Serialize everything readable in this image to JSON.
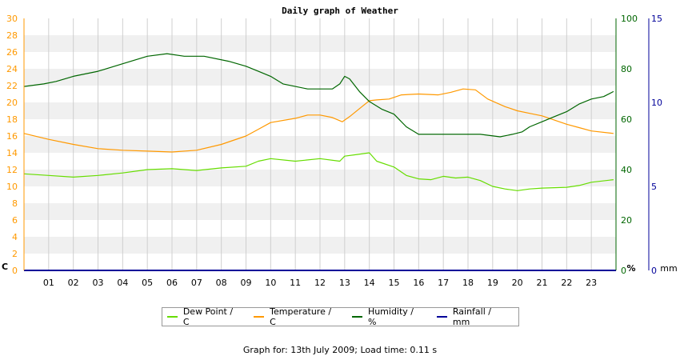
{
  "chart_data": {
    "type": "line",
    "title": "Daily graph of Weather",
    "x": {
      "ticks": [
        "01",
        "02",
        "03",
        "04",
        "05",
        "06",
        "07",
        "08",
        "09",
        "10",
        "11",
        "12",
        "13",
        "14",
        "15",
        "16",
        "17",
        "18",
        "19",
        "20",
        "21",
        "22",
        "23"
      ],
      "range": [
        0,
        24
      ]
    },
    "axes": {
      "left": {
        "unit_label": "C",
        "range": [
          0,
          30
        ],
        "ticks": [
          0,
          2,
          4,
          6,
          8,
          10,
          12,
          14,
          16,
          18,
          20,
          22,
          24,
          26,
          28,
          30
        ],
        "color": "#ff9900"
      },
      "right1": {
        "unit_label": "%",
        "range": [
          0,
          100
        ],
        "ticks": [
          0,
          20,
          40,
          60,
          80,
          100
        ],
        "color": "#006600"
      },
      "right2": {
        "unit_label": "mm",
        "range": [
          0,
          15
        ],
        "ticks": [
          0,
          5,
          10,
          15
        ],
        "color": "#000099"
      }
    },
    "series": [
      {
        "name": "Dew Point / C",
        "axis": "left",
        "color": "#66dd00",
        "points": [
          [
            0,
            11.5
          ],
          [
            1,
            11.3
          ],
          [
            2,
            11.1
          ],
          [
            3,
            11.3
          ],
          [
            4,
            11.6
          ],
          [
            5,
            12.0
          ],
          [
            6,
            12.1
          ],
          [
            7,
            11.9
          ],
          [
            8,
            12.2
          ],
          [
            9,
            12.4
          ],
          [
            9.5,
            13.0
          ],
          [
            10,
            13.3
          ],
          [
            11,
            13.0
          ],
          [
            12,
            13.3
          ],
          [
            12.8,
            13.0
          ],
          [
            13,
            13.6
          ],
          [
            13.5,
            13.8
          ],
          [
            14,
            14.0
          ],
          [
            14.3,
            13.0
          ],
          [
            15,
            12.3
          ],
          [
            15.5,
            11.3
          ],
          [
            16,
            10.9
          ],
          [
            16.5,
            10.8
          ],
          [
            17,
            11.2
          ],
          [
            17.5,
            11.0
          ],
          [
            18,
            11.1
          ],
          [
            18.5,
            10.7
          ],
          [
            19,
            10.0
          ],
          [
            19.5,
            9.7
          ],
          [
            20,
            9.5
          ],
          [
            20.5,
            9.7
          ],
          [
            21,
            9.8
          ],
          [
            22,
            9.9
          ],
          [
            22.5,
            10.1
          ],
          [
            23,
            10.5
          ],
          [
            23.9,
            10.8
          ]
        ]
      },
      {
        "name": "Temperature / C",
        "axis": "left",
        "color": "#ff9900",
        "points": [
          [
            0,
            16.3
          ],
          [
            1,
            15.6
          ],
          [
            2,
            15.0
          ],
          [
            3,
            14.5
          ],
          [
            4,
            14.3
          ],
          [
            5,
            14.2
          ],
          [
            6,
            14.1
          ],
          [
            7,
            14.3
          ],
          [
            8,
            15.0
          ],
          [
            9,
            16.0
          ],
          [
            9.5,
            16.8
          ],
          [
            10,
            17.6
          ],
          [
            11,
            18.1
          ],
          [
            11.5,
            18.5
          ],
          [
            12,
            18.5
          ],
          [
            12.5,
            18.2
          ],
          [
            12.9,
            17.7
          ],
          [
            13.2,
            18.3
          ],
          [
            13.7,
            19.5
          ],
          [
            14,
            20.2
          ],
          [
            14.3,
            20.3
          ],
          [
            14.8,
            20.4
          ],
          [
            15.3,
            20.9
          ],
          [
            16,
            21.0
          ],
          [
            16.8,
            20.9
          ],
          [
            17.3,
            21.2
          ],
          [
            17.8,
            21.6
          ],
          [
            18.3,
            21.5
          ],
          [
            18.8,
            20.4
          ],
          [
            19.5,
            19.5
          ],
          [
            20,
            19.0
          ],
          [
            20.5,
            18.7
          ],
          [
            21,
            18.4
          ],
          [
            21.5,
            17.9
          ],
          [
            22,
            17.4
          ],
          [
            22.5,
            17.0
          ],
          [
            23,
            16.6
          ],
          [
            23.9,
            16.3
          ]
        ]
      },
      {
        "name": "Humidity / %",
        "axis": "right1",
        "color": "#006600",
        "points": [
          [
            0,
            73
          ],
          [
            0.8,
            74
          ],
          [
            1.3,
            75
          ],
          [
            2,
            77
          ],
          [
            3,
            79
          ],
          [
            4,
            82
          ],
          [
            5,
            85
          ],
          [
            5.8,
            86
          ],
          [
            6.5,
            85
          ],
          [
            7.3,
            85
          ],
          [
            8.3,
            83
          ],
          [
            9,
            81
          ],
          [
            9.5,
            79
          ],
          [
            10,
            77
          ],
          [
            10.5,
            74
          ],
          [
            11,
            73
          ],
          [
            11.5,
            72
          ],
          [
            12.5,
            72
          ],
          [
            12.8,
            74
          ],
          [
            13,
            77
          ],
          [
            13.2,
            76
          ],
          [
            13.6,
            71
          ],
          [
            14,
            67
          ],
          [
            14.5,
            64
          ],
          [
            15,
            62
          ],
          [
            15.5,
            57
          ],
          [
            16,
            54
          ],
          [
            16.7,
            54
          ],
          [
            17.5,
            54
          ],
          [
            18.5,
            54
          ],
          [
            19.3,
            53
          ],
          [
            19.8,
            54
          ],
          [
            20.2,
            55
          ],
          [
            20.5,
            57
          ],
          [
            21,
            59
          ],
          [
            21.5,
            61
          ],
          [
            22,
            63
          ],
          [
            22.5,
            66
          ],
          [
            23,
            68
          ],
          [
            23.5,
            69
          ],
          [
            23.9,
            71
          ]
        ]
      },
      {
        "name": "Rainfall / mm",
        "axis": "right2",
        "color": "#000099",
        "points": [
          [
            0,
            0
          ],
          [
            24,
            0
          ]
        ]
      }
    ],
    "legend_position": "bottom-center",
    "grid": true
  },
  "footer": {
    "text": "Graph for: 13th July 2009; Load time: 0.11 s"
  }
}
